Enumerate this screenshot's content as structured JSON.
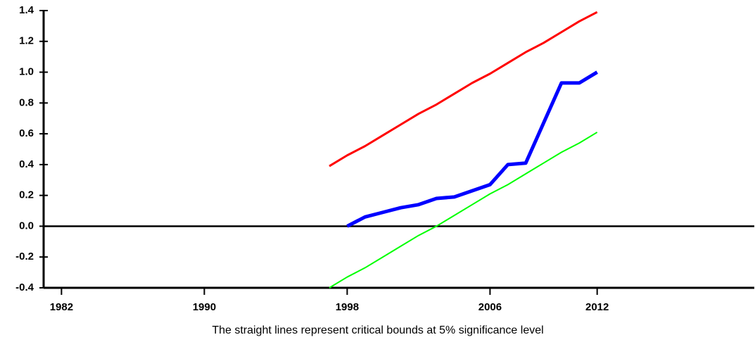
{
  "chart_data": {
    "type": "line",
    "caption": "The straight lines represent critical bounds at 5% significance level",
    "x": [
      1997,
      1998,
      1999,
      2000,
      2001,
      2002,
      2003,
      2004,
      2005,
      2006,
      2007,
      2008,
      2009,
      2010,
      2011,
      2012
    ],
    "series": [
      {
        "color": "#ff0000",
        "width": 3,
        "values": [
          0.39,
          0.46,
          0.52,
          0.59,
          0.66,
          0.73,
          0.79,
          0.86,
          0.93,
          0.99,
          1.06,
          1.13,
          1.19,
          1.26,
          1.33,
          1.39
        ]
      },
      {
        "color": "#0000ff",
        "width": 5,
        "values": [
          null,
          0.0,
          0.06,
          0.09,
          0.12,
          0.14,
          0.18,
          0.19,
          0.23,
          0.27,
          0.4,
          0.41,
          0.67,
          0.93,
          0.93,
          1.0
        ]
      },
      {
        "color": "#00ff00",
        "width": 2,
        "values": [
          -0.4,
          -0.33,
          -0.27,
          -0.2,
          -0.13,
          -0.06,
          0.0,
          0.07,
          0.14,
          0.21,
          0.27,
          0.34,
          0.41,
          0.48,
          0.54,
          0.61
        ]
      }
    ],
    "xlim": [
      1981,
      2020.8
    ],
    "xticks": [
      1982,
      1990,
      1998,
      2006,
      2012
    ],
    "ylim": [
      -0.4,
      1.4
    ],
    "yticks": [
      -0.4,
      -0.2,
      {
        "value": 0,
        "label": "0.0"
      },
      0.2,
      0.4,
      0.6,
      0.8,
      {
        "value": 1,
        "label": "1.0"
      },
      1.2,
      1.4
    ]
  }
}
